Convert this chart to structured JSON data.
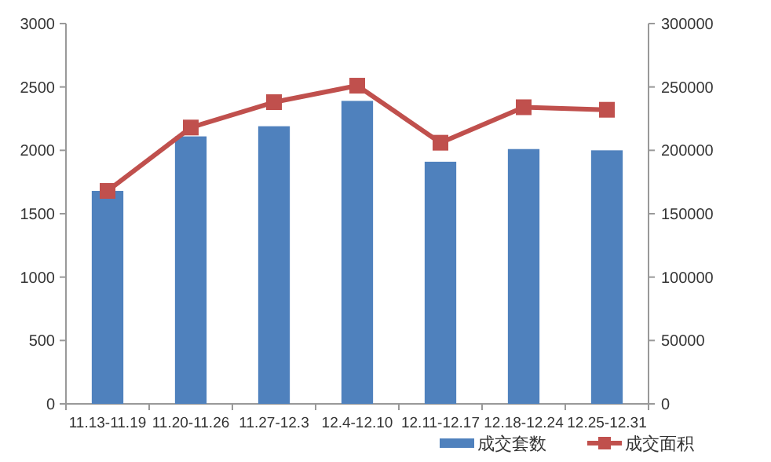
{
  "chart_data": {
    "type": "bar",
    "categories": [
      "11.13-11.19",
      "11.20-11.26",
      "11.27-12.3",
      "12.4-12.10",
      "12.11-12.17",
      "12.18-12.24",
      "12.25-12.31"
    ],
    "series": [
      {
        "name": "成交套数",
        "color": "#4f81bd",
        "values": [
          1680,
          2110,
          2190,
          2390,
          1910,
          2010,
          2000
        ]
      },
      {
        "name": "成交面积",
        "type": "line",
        "axis": "y2",
        "color": "#c0504d",
        "marker": "square",
        "values": [
          168000,
          218000,
          238000,
          251000,
          206000,
          234000,
          232000
        ]
      }
    ],
    "ylim": [
      0,
      3000
    ],
    "yticks": [
      0,
      500,
      1000,
      1500,
      2000,
      2500,
      3000
    ],
    "y2lim": [
      0,
      300000
    ],
    "y2ticks": [
      0,
      50000,
      100000,
      150000,
      200000,
      250000,
      300000
    ],
    "grid": false,
    "legend": "bottom right"
  }
}
